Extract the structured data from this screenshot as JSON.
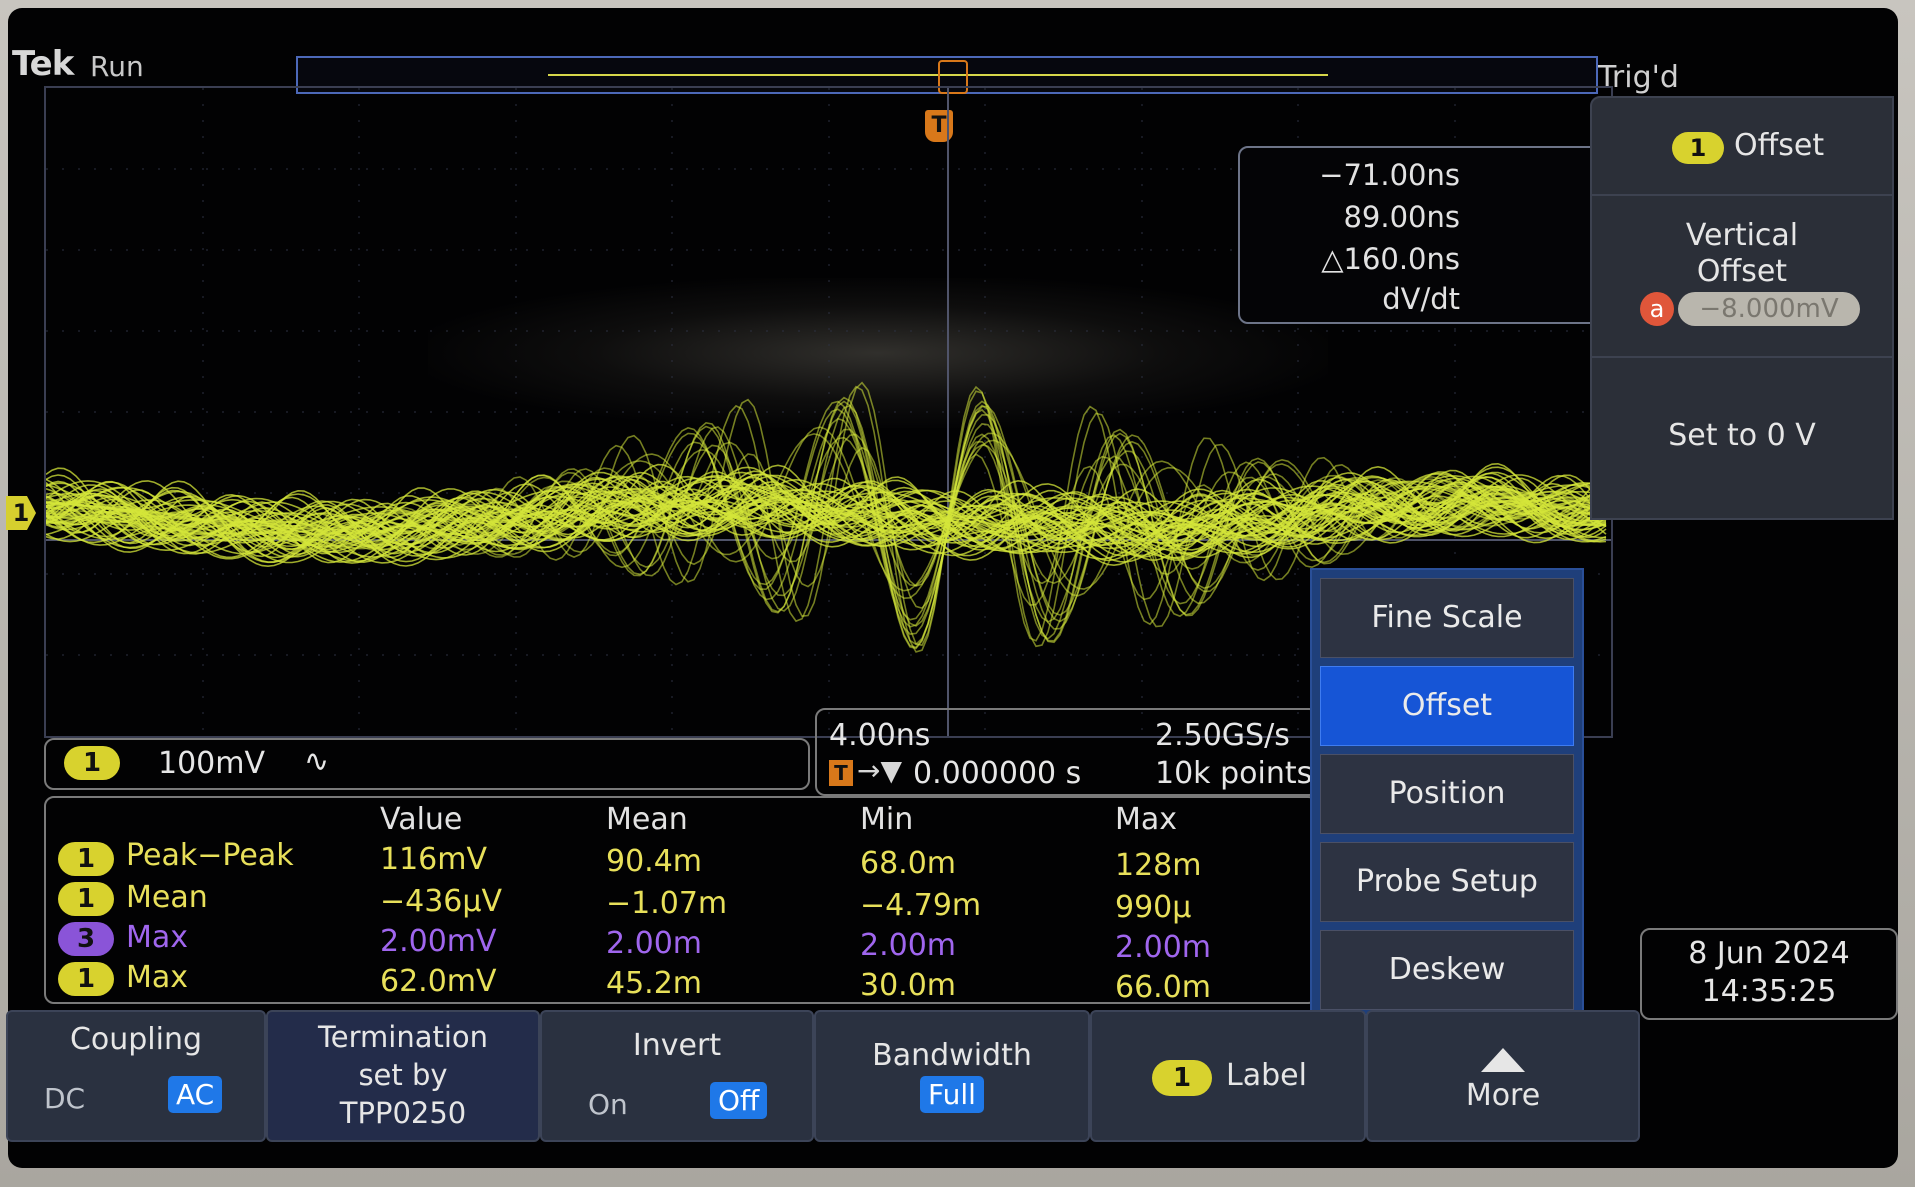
{
  "header": {
    "brand": "Tek",
    "run_state": "Run",
    "trigger_status": "Trig'd"
  },
  "markers": {
    "trigger": "T",
    "channel1": "1"
  },
  "cursor_readout": {
    "t1": "−71.00ns",
    "t2": "89.00ns",
    "delta": "△160.0ns",
    "mode": "dV/dt"
  },
  "side_menu": {
    "header_badge": "1",
    "header_label": "Offset",
    "vertical_offset_label": "Vertical Offset",
    "knob_badge": "a",
    "vertical_offset_value": "−8.000mV",
    "set_zero_label": "Set to 0 V"
  },
  "channel_bar": {
    "badge": "1",
    "scale": "100mV",
    "coupling_symbol": "∿"
  },
  "horizontal": {
    "time_per_div": "4.00ns",
    "trigger_glyph": "T",
    "arrow": "→▼",
    "position": "0.000000 s",
    "sample_rate": "2.50GS/s",
    "record_length": "10k points"
  },
  "measurements": {
    "headers": [
      "Value",
      "Mean",
      "Min",
      "Max"
    ],
    "rows": [
      {
        "ch": "1",
        "name": "Peak−Peak",
        "value": "116mV",
        "mean": "90.4m",
        "min": "68.0m",
        "max": "128m",
        "color": "#e8e05a"
      },
      {
        "ch": "1",
        "name": "Mean",
        "value": "−436µV",
        "mean": "−1.07m",
        "min": "−4.79m",
        "max": "990µ",
        "color": "#e8e05a"
      },
      {
        "ch": "3",
        "name": "Max",
        "value": "2.00mV",
        "mean": "2.00m",
        "min": "2.00m",
        "max": "2.00m",
        "color": "#a066ee"
      },
      {
        "ch": "1",
        "name": "Max",
        "value": "62.0mV",
        "mean": "45.2m",
        "min": "30.0m",
        "max": "66.0m",
        "color": "#e8e05a"
      }
    ]
  },
  "popup_menu": {
    "items": [
      "Fine Scale",
      "Offset",
      "Position",
      "Probe Setup",
      "Deskew"
    ],
    "selected": "Offset"
  },
  "datetime": {
    "date": "8 Jun  2024",
    "time": "14:35:25"
  },
  "bottom_menu": {
    "coupling": {
      "label": "Coupling",
      "opt_dc": "DC",
      "opt_ac": "AC"
    },
    "termination": {
      "line1": "Termination",
      "line2": "set by",
      "line3": "TPP0250"
    },
    "invert": {
      "label": "Invert",
      "opt_on": "On",
      "opt_off": "Off"
    },
    "bandwidth": {
      "label": "Bandwidth",
      "value": "Full"
    },
    "label_button": {
      "badge": "1",
      "label": "Label"
    },
    "more": {
      "label": "More"
    }
  },
  "colors": {
    "trace": "#d4e63a",
    "trigger": "#d8781a",
    "selected_menu": "#1655d6",
    "ch3": "#a066ee"
  }
}
